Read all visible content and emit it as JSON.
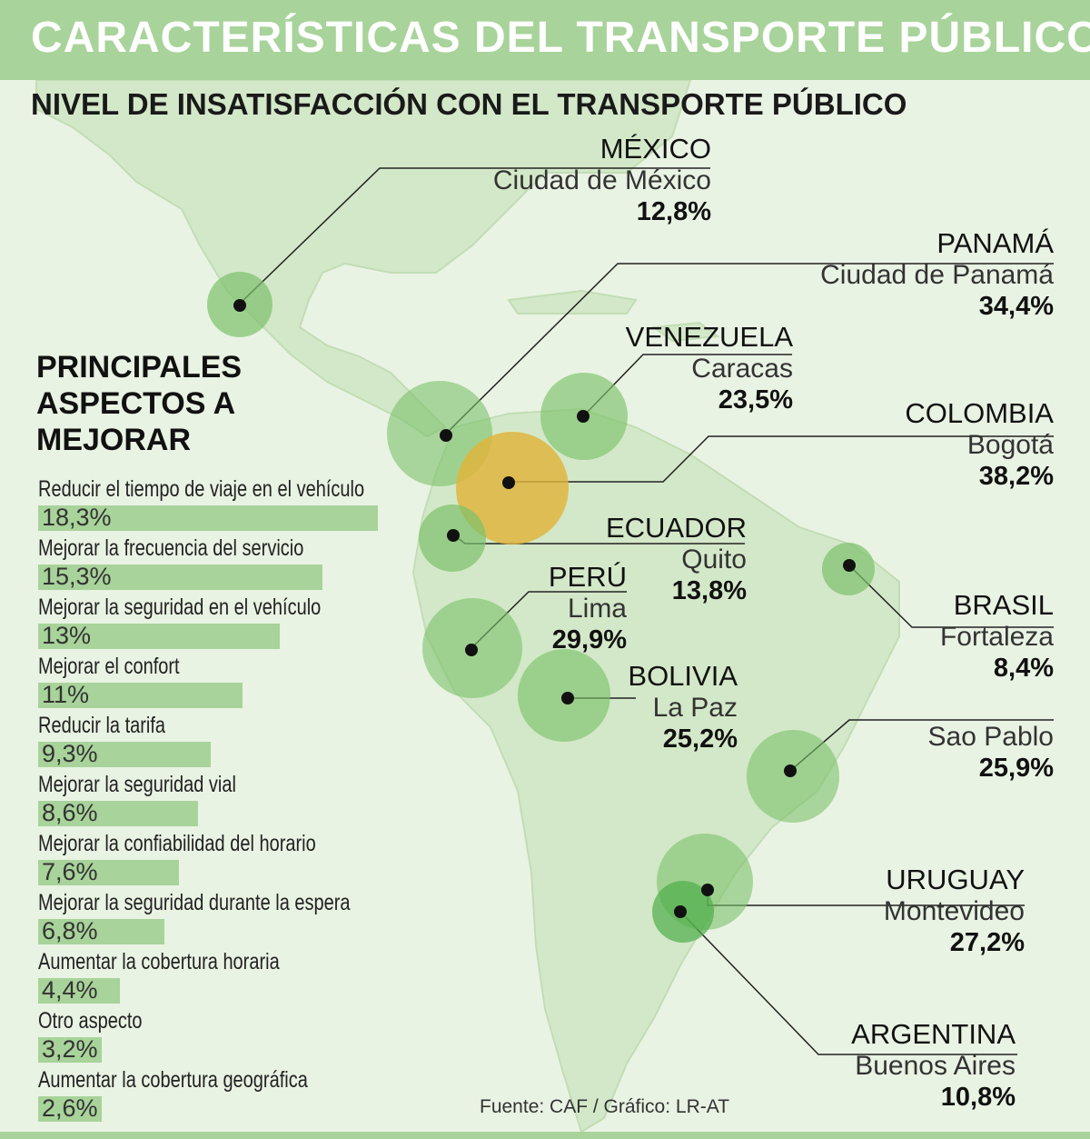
{
  "header": {
    "title": "CARACTERÍSTICAS DEL TRANSPORTE PÚBLICO"
  },
  "map": {
    "subtitle": "NIVEL DE INSATISFACCIÓN CON EL TRANSPORTE PÚBLICO"
  },
  "aspects": {
    "title": "PRINCIPALES ASPECTOS A MEJORAR"
  },
  "chart_data": [
    {
      "type": "bar",
      "orientation": "horizontal",
      "title": "PRINCIPALES ASPECTOS A MEJORAR",
      "categories": [
        "Reducir el tiempo de viaje en el vehículo",
        "Mejorar la frecuencia del servicio",
        "Mejorar la seguridad en el vehículo",
        "Mejorar el confort",
        "Reducir la tarifa",
        "Mejorar la seguridad vial",
        "Mejorar la confiabilidad del horario",
        "Mejorar la seguridad durante la espera",
        "Aumentar la cobertura horaria",
        "Otro aspecto",
        "Aumentar la cobertura geográfica"
      ],
      "values": [
        18.3,
        15.3,
        13,
        11,
        9.3,
        8.6,
        7.6,
        6.8,
        4.4,
        3.2,
        2.6
      ],
      "value_labels": [
        "18,3%",
        "15,3%",
        "13%",
        "11%",
        "9,3%",
        "8,6%",
        "7,6%",
        "6,8%",
        "4,4%",
        "3,2%",
        "2,6%"
      ],
      "bar_color": "#a8d39a"
    },
    {
      "type": "bubble-map",
      "title": "NIVEL DE INSATISFACCIÓN CON EL TRANSPORTE PÚBLICO",
      "points": [
        {
          "country": "MÉXICO",
          "city": "Ciudad de México",
          "value": 12.8,
          "label": "12,8%",
          "color": "#7cc16b"
        },
        {
          "country": "PANAMÁ",
          "city": "Ciudad de Panamá",
          "value": 34.4,
          "label": "34,4%",
          "color": "#7cc16b"
        },
        {
          "country": "VENEZUELA",
          "city": "Caracas",
          "value": 23.5,
          "label": "23,5%",
          "color": "#7cc16b"
        },
        {
          "country": "COLOMBIA",
          "city": "Bogotá",
          "value": 38.2,
          "label": "38,2%",
          "color": "#e0b43a"
        },
        {
          "country": "ECUADOR",
          "city": "Quito",
          "value": 13.8,
          "label": "13,8%",
          "color": "#7cc16b"
        },
        {
          "country": "BRASIL",
          "city": "Fortaleza",
          "value": 8.4,
          "label": "8,4%",
          "color": "#7cc16b"
        },
        {
          "country": "PERÚ",
          "city": "Lima",
          "value": 29.9,
          "label": "29,9%",
          "color": "#7cc16b"
        },
        {
          "country": "BOLIVIA",
          "city": "La Paz",
          "value": 25.2,
          "label": "25,2%",
          "color": "#7cc16b"
        },
        {
          "country": "",
          "city": "Sao Pablo",
          "value": 25.9,
          "label": "25,9%",
          "color": "#7cc16b"
        },
        {
          "country": "URUGUAY",
          "city": "Montevideo",
          "value": 27.2,
          "label": "27,2%",
          "color": "#7cc16b"
        },
        {
          "country": "ARGENTINA",
          "city": "Buenos Aires",
          "value": 10.8,
          "label": "10,8%",
          "color": "#7cc16b"
        }
      ]
    }
  ],
  "footer": {
    "source": "Fuente:  CAF / Gráfico: LR-AT"
  },
  "colors": {
    "banner": "#a8d39a",
    "background": "#e9f3e3",
    "land": "#cfe6c3",
    "highlight": "#e0b43a"
  }
}
